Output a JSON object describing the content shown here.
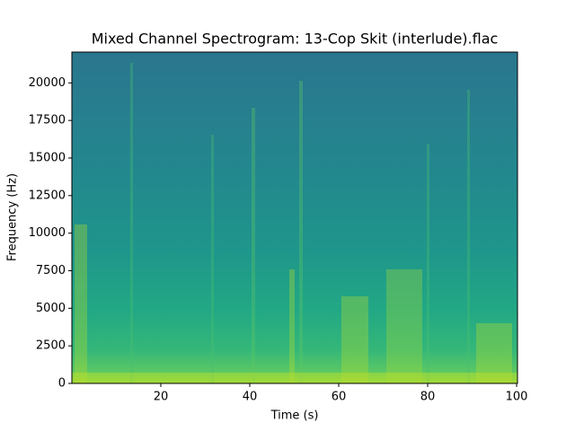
{
  "chart_data": {
    "type": "spectrogram",
    "title": "Mixed Channel Spectrogram: 13-Cop Skit (interlude).flac",
    "x_label": "Time (s)",
    "y_label": "Frequency (Hz)",
    "xlim": [
      0,
      100.2
    ],
    "ylim": [
      0,
      22050
    ],
    "xticks": [
      20,
      40,
      60,
      80,
      100
    ],
    "yticks": [
      0,
      2500,
      5000,
      7500,
      10000,
      12500,
      15000,
      17500,
      20000
    ],
    "colormap": "viridis"
  }
}
